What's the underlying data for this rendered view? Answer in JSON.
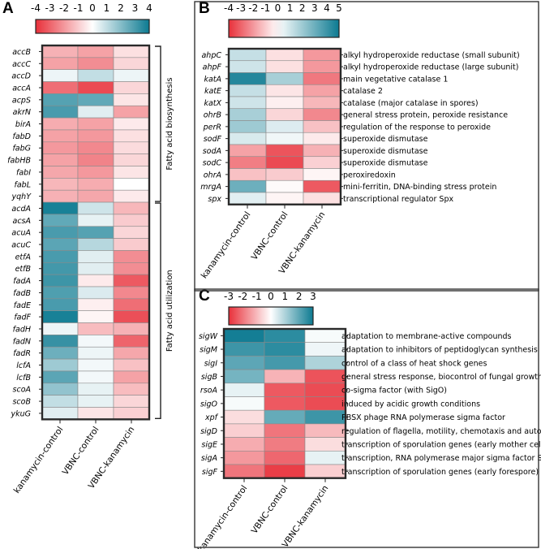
{
  "chart_data": [
    {
      "type": "heatmap",
      "panel": "A",
      "colorbar": {
        "ticks": [
          -4,
          -3,
          -2,
          -1,
          0,
          1,
          2,
          3,
          4
        ],
        "min": -4,
        "max": 4
      },
      "columns": [
        "kanamycin-control",
        "VBNC-control",
        "VBNC-kanamycin"
      ],
      "groups": [
        {
          "label": "Fatty acid biosynthesis",
          "from": "accB",
          "to": "yqhY"
        },
        {
          "label": "Fatty acid utilization",
          "from": "acdA",
          "to": "ykuG"
        }
      ],
      "rows": [
        {
          "gene": "accB",
          "values": [
            -1.5,
            -1.8,
            -0.6
          ]
        },
        {
          "gene": "accC",
          "values": [
            -1.8,
            -2.2,
            -0.8
          ]
        },
        {
          "gene": "accD",
          "values": [
            0.3,
            1.0,
            0.3
          ]
        },
        {
          "gene": "accA",
          "values": [
            -2.8,
            -3.5,
            -0.8
          ]
        },
        {
          "gene": "acpS",
          "values": [
            2.8,
            2.6,
            -0.5
          ]
        },
        {
          "gene": "akrN",
          "values": [
            3.0,
            0.5,
            -1.8
          ]
        },
        {
          "gene": "birA",
          "values": [
            -1.6,
            -1.8,
            -0.4
          ]
        },
        {
          "gene": "fabD",
          "values": [
            -1.8,
            -2.0,
            -0.6
          ]
        },
        {
          "gene": "fabG",
          "values": [
            -2.0,
            -2.3,
            -0.7
          ]
        },
        {
          "gene": "fabHB",
          "values": [
            -1.8,
            -2.4,
            -0.8
          ]
        },
        {
          "gene": "fabI",
          "values": [
            -1.7,
            -2.0,
            -0.5
          ]
        },
        {
          "gene": "fabL",
          "values": [
            -1.4,
            -1.6,
            0.0
          ]
        },
        {
          "gene": "yqhY",
          "values": [
            -1.5,
            -1.7,
            -0.4
          ]
        },
        {
          "gene": "acdA",
          "values": [
            3.8,
            0.8,
            -1.4
          ]
        },
        {
          "gene": "acsA",
          "values": [
            2.6,
            0.4,
            -1.0
          ]
        },
        {
          "gene": "acuA",
          "values": [
            3.0,
            2.8,
            -0.8
          ]
        },
        {
          "gene": "acuC",
          "values": [
            2.7,
            1.2,
            -1.0
          ]
        },
        {
          "gene": "etfA",
          "values": [
            3.0,
            0.5,
            -2.2
          ]
        },
        {
          "gene": "etfB",
          "values": [
            3.1,
            0.5,
            -2.2
          ]
        },
        {
          "gene": "fadA",
          "values": [
            3.2,
            -0.4,
            -3.2
          ]
        },
        {
          "gene": "fadB",
          "values": [
            2.9,
            0.6,
            -2.3
          ]
        },
        {
          "gene": "fadE",
          "values": [
            3.0,
            -0.3,
            -2.8
          ]
        },
        {
          "gene": "fadF",
          "values": [
            3.8,
            -0.2,
            -3.4
          ]
        },
        {
          "gene": "fadH",
          "values": [
            0.3,
            -1.3,
            -1.5
          ]
        },
        {
          "gene": "fadN",
          "values": [
            3.3,
            0.2,
            -3.0
          ]
        },
        {
          "gene": "fadR",
          "values": [
            2.4,
            0.3,
            -1.7
          ]
        },
        {
          "gene": "lcfA",
          "values": [
            1.6,
            0.2,
            -1.2
          ]
        },
        {
          "gene": "lcfB",
          "values": [
            2.7,
            0.2,
            -1.8
          ]
        },
        {
          "gene": "scoA",
          "values": [
            1.8,
            0.4,
            -1.3
          ]
        },
        {
          "gene": "scoB",
          "values": [
            1.0,
            0.4,
            -0.8
          ]
        },
        {
          "gene": "ykuG",
          "values": [
            0.5,
            -0.5,
            -0.9
          ]
        }
      ]
    },
    {
      "type": "heatmap",
      "panel": "B",
      "colorbar": {
        "ticks": [
          -4,
          -3,
          -2,
          -1,
          0,
          1,
          2,
          3,
          4,
          5
        ],
        "min": -4,
        "max": 5
      },
      "columns": [
        "kanamycin-control",
        "VBNC-control",
        "VBNC-kanamycin"
      ],
      "rows": [
        {
          "gene": "ahpC",
          "desc": "alkyl hydroperoxide reductase (small subunit)",
          "values": [
            1.2,
            -0.6,
            -2.0
          ]
        },
        {
          "gene": "ahpF",
          "desc": "alkyl hydroperoxide reductase (large subunit)",
          "values": [
            1.0,
            -0.6,
            -2.0
          ]
        },
        {
          "gene": "katA",
          "desc": "main vegetative catalase 1",
          "values": [
            4.5,
            1.8,
            -2.6
          ]
        },
        {
          "gene": "katE",
          "desc": "catalase 2",
          "values": [
            1.2,
            -0.5,
            -1.8
          ]
        },
        {
          "gene": "katX",
          "desc": "catalase (major catalase in spores)",
          "values": [
            1.0,
            -0.3,
            -1.4
          ]
        },
        {
          "gene": "ohrB",
          "desc": "general stress protein, peroxide resistance",
          "values": [
            1.8,
            -0.8,
            -2.3
          ]
        },
        {
          "gene": "perR",
          "desc": "regulation of the response to peroxide",
          "values": [
            2.0,
            0.7,
            -1.2
          ]
        },
        {
          "gene": "sodF",
          "desc": "superoxide dismutase",
          "values": [
            0.8,
            0.3,
            -0.4
          ]
        },
        {
          "gene": "sodA",
          "desc": "superoxide dismutase",
          "values": [
            -1.8,
            -3.3,
            -1.5
          ]
        },
        {
          "gene": "sodC",
          "desc": "superoxide dismutase",
          "values": [
            -2.5,
            -3.5,
            -0.9
          ]
        },
        {
          "gene": "ohrA",
          "desc": "peroxiredoxin",
          "values": [
            -1.2,
            -1.0,
            -0.2
          ]
        },
        {
          "gene": "mrgA",
          "desc": "mini-ferritin, DNA-binding stress protein",
          "values": [
            3.0,
            -0.1,
            -3.2
          ]
        },
        {
          "gene": "spx",
          "desc": "transcriptional regulator Spx",
          "values": [
            0.6,
            -0.2,
            -0.6
          ]
        }
      ]
    },
    {
      "type": "heatmap",
      "panel": "C",
      "colorbar": {
        "ticks": [
          -3,
          -2,
          -1,
          0,
          1,
          2,
          3
        ],
        "min": -3,
        "max": 3
      },
      "columns": [
        "kanamycin-control",
        "VBNC-control",
        "VBNC-kanamycin"
      ],
      "rows": [
        {
          "gene": "sigW",
          "desc": "adaptation to membrane-active compounds",
          "values": [
            2.9,
            2.6,
            0.1
          ]
        },
        {
          "gene": "sigM",
          "desc": "adaptation to inhibitors of peptidoglycan synthesis",
          "values": [
            2.4,
            2.6,
            0.2
          ]
        },
        {
          "gene": "sigI",
          "desc": "control of a class of heat shock genes",
          "values": [
            2.0,
            2.3,
            1.0
          ]
        },
        {
          "gene": "sigB",
          "desc": "general stress response, biocontrol of fungal growth",
          "values": [
            1.7,
            -1.1,
            -2.5
          ]
        },
        {
          "gene": "rsoA",
          "desc": "co-sigma factor (with SigO)",
          "values": [
            0.3,
            -2.4,
            -2.6
          ]
        },
        {
          "gene": "sigO",
          "desc": "induced by acidic growth conditions",
          "values": [
            0.1,
            -2.4,
            -2.6
          ]
        },
        {
          "gene": "xpf",
          "desc": "PBSX phage RNA polymerase sigma factor",
          "values": [
            -0.5,
            1.9,
            2.4
          ]
        },
        {
          "gene": "sigD",
          "desc": "regulation of flagella, motility, chemotaxis and autolysis",
          "values": [
            -0.7,
            -2.0,
            -1.0
          ]
        },
        {
          "gene": "sigE",
          "desc": "transcription of sporulation genes (early mother cell)",
          "values": [
            -1.2,
            -1.9,
            -0.5
          ]
        },
        {
          "gene": "sigA",
          "desc": "transcription, RNA polymerase major sigma factor SigA",
          "values": [
            -1.5,
            -2.2,
            0.3
          ]
        },
        {
          "gene": "sigF",
          "desc": "transcription of sporulation genes (early forespore)",
          "values": [
            -2.0,
            -2.8,
            -0.7
          ]
        }
      ]
    }
  ]
}
